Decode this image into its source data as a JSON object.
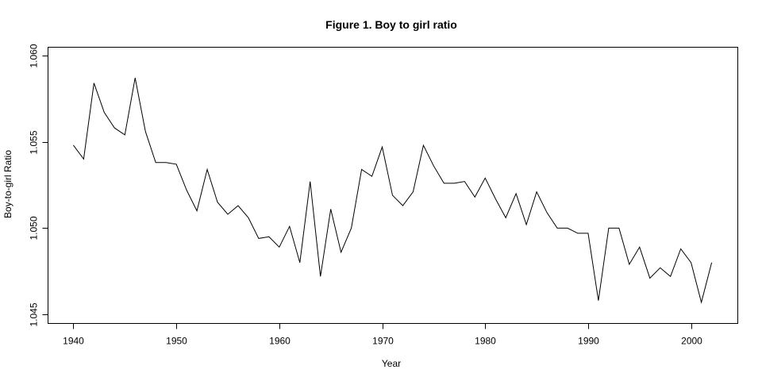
{
  "chart_data": {
    "type": "line",
    "title": "Figure 1. Boy to girl ratio",
    "xlabel": "Year",
    "ylabel": "Boy-to-girl Ratio",
    "xlim": [
      1937.5,
      2004.5
    ],
    "ylim": [
      1.0445,
      1.0605
    ],
    "xticks": [
      1940,
      1950,
      1960,
      1970,
      1980,
      1990,
      2000
    ],
    "xtick_labels": [
      "1940",
      "1950",
      "1960",
      "1970",
      "1980",
      "1990",
      "2000"
    ],
    "yticks": [
      1.045,
      1.05,
      1.055,
      1.06
    ],
    "ytick_labels": [
      "1.045",
      "1.050",
      "1.055",
      "1.060"
    ],
    "grid": false,
    "x": [
      1940,
      1941,
      1942,
      1943,
      1944,
      1945,
      1946,
      1947,
      1948,
      1949,
      1950,
      1951,
      1952,
      1953,
      1954,
      1955,
      1956,
      1957,
      1958,
      1959,
      1960,
      1961,
      1962,
      1963,
      1964,
      1965,
      1966,
      1967,
      1968,
      1969,
      1970,
      1971,
      1972,
      1973,
      1974,
      1975,
      1976,
      1977,
      1978,
      1979,
      1980,
      1981,
      1982,
      1983,
      1984,
      1985,
      1986,
      1987,
      1988,
      1989,
      1990,
      1991,
      1992,
      1993,
      1994,
      1995,
      1996,
      1997,
      1998,
      1999,
      2000,
      2001,
      2002
    ],
    "series": [
      {
        "values": [
          1.0548,
          1.054,
          1.0584,
          1.0567,
          1.0558,
          1.0554,
          1.0587,
          1.0556,
          1.0538,
          1.0538,
          1.0537,
          1.0522,
          1.051,
          1.0534,
          1.0515,
          1.0508,
          1.0513,
          1.0506,
          1.0494,
          1.0495,
          1.0489,
          1.0501,
          1.048,
          1.0527,
          1.0472,
          1.0511,
          1.0486,
          1.05,
          1.0534,
          1.053,
          1.0547,
          1.0519,
          1.0513,
          1.0521,
          1.0548,
          1.0536,
          1.0526,
          1.0526,
          1.0527,
          1.0518,
          1.0529,
          1.0517,
          1.0506,
          1.052,
          1.0502,
          1.0521,
          1.0509,
          1.05,
          1.05,
          1.0497,
          1.0497,
          1.0458,
          1.05,
          1.05,
          1.0479,
          1.0489,
          1.0471,
          1.0477,
          1.0472,
          1.0488,
          1.048,
          1.0457,
          1.048
        ],
        "color": "#000000"
      }
    ]
  }
}
